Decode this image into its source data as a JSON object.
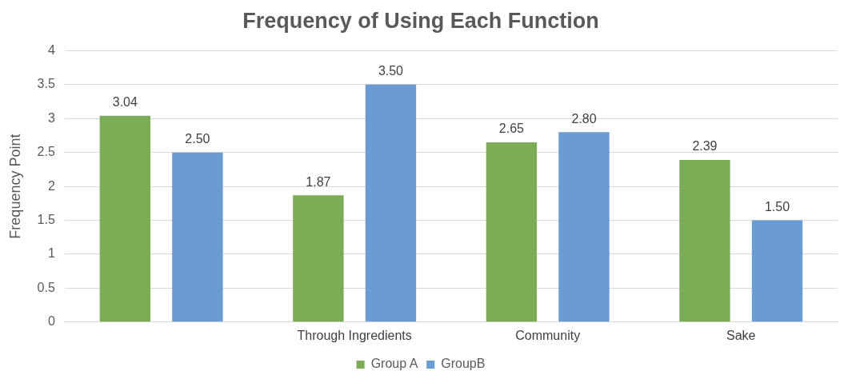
{
  "chart_data": {
    "type": "bar",
    "title": "Frequency of Using Each Function",
    "ylabel": "Frequency Point",
    "categories": [
      null,
      "Through Ingredients",
      "Community",
      "Sake"
    ],
    "series": [
      {
        "name": "Group A",
        "color": "#7cac55",
        "values": [
          3.04,
          1.87,
          2.65,
          2.39
        ],
        "value_labels": [
          "3.04",
          "1.87",
          "2.65",
          "2.39"
        ]
      },
      {
        "name": "GroupB",
        "color": "#6a9bd2",
        "values": [
          2.5,
          3.5,
          2.8,
          1.5
        ],
        "value_labels": [
          "2.50",
          "3.50",
          "2.80",
          "1.50"
        ]
      }
    ],
    "ylim": [
      0,
      4
    ],
    "yticks": [
      0,
      0.5,
      1,
      1.5,
      2,
      2.5,
      3,
      3.5,
      4
    ],
    "grid": "y",
    "legend": "bottom"
  }
}
